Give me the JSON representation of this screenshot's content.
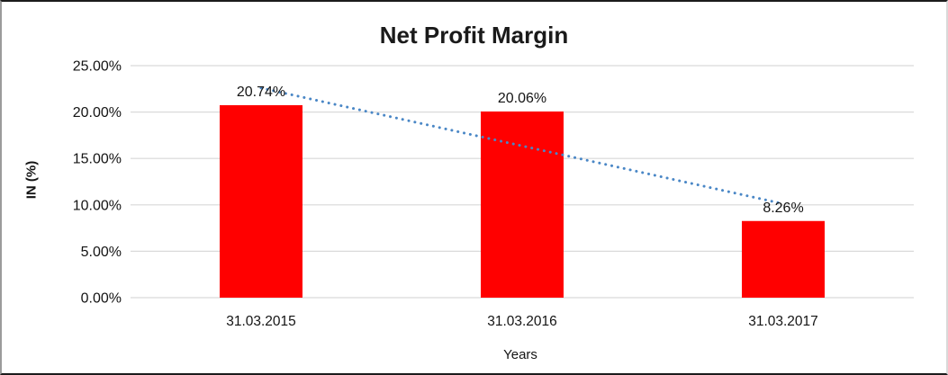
{
  "chart_data": {
    "type": "bar",
    "title": "Net Profit Margin",
    "categories": [
      "31.03.2015",
      "31.03.2016",
      "31.03.2017"
    ],
    "values": [
      20.74,
      20.06,
      8.26
    ],
    "data_labels": [
      "20.74%",
      "20.06%",
      "8.26%"
    ],
    "xlabel": "Years",
    "ylabel": "IN (%)",
    "ylim": [
      0,
      25
    ],
    "y_tick_step": 5,
    "y_tick_labels": [
      "0.00%",
      "5.00%",
      "10.00%",
      "15.00%",
      "20.00%",
      "25.00%"
    ],
    "grid": true,
    "legend": false,
    "bar_color": "#FF0000",
    "trendline": {
      "type": "linear",
      "style": "dotted",
      "color": "#4A87C6"
    }
  }
}
